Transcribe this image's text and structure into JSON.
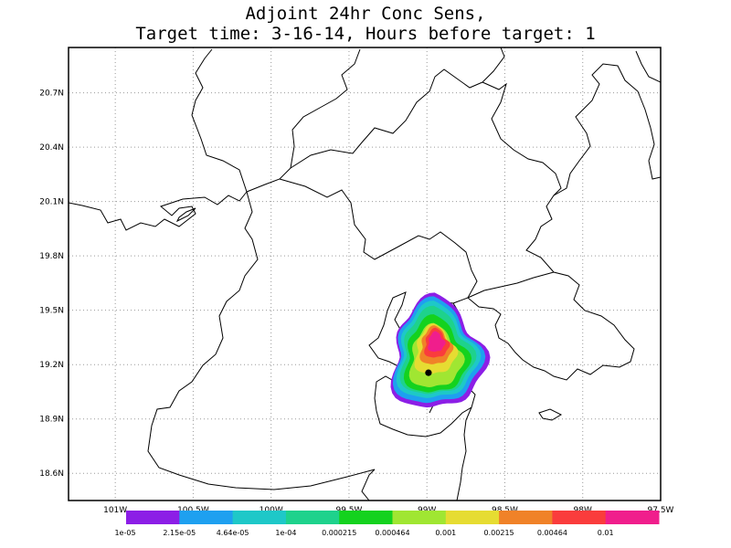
{
  "title": {
    "line1": "Adjoint 24hr Conc Sens,",
    "line2": "Target time: 3-16-14, Hours before target: 1"
  },
  "map": {
    "lon_range": [
      -101.3,
      -97.5
    ],
    "lat_range": [
      18.45,
      20.95
    ],
    "lat_ticks": [
      {
        "value": 18.6,
        "label": "18.6N"
      },
      {
        "value": 18.9,
        "label": "18.9N"
      },
      {
        "value": 19.2,
        "label": "19.2N"
      },
      {
        "value": 19.5,
        "label": "19.5N"
      },
      {
        "value": 19.8,
        "label": "19.8N"
      },
      {
        "value": 20.1,
        "label": "20.1N"
      },
      {
        "value": 20.4,
        "label": "20.4N"
      },
      {
        "value": 20.7,
        "label": "20.7N"
      }
    ],
    "lon_ticks": [
      {
        "value": -101.0,
        "label": "101W"
      },
      {
        "value": -100.5,
        "label": "100.5W"
      },
      {
        "value": -100.0,
        "label": "100W"
      },
      {
        "value": -99.5,
        "label": "99.5W"
      },
      {
        "value": -99.0,
        "label": "99W"
      },
      {
        "value": -98.5,
        "label": "98.5W"
      },
      {
        "value": -98.0,
        "label": "98W"
      },
      {
        "value": -97.5,
        "label": "97.5W"
      }
    ],
    "grid": "dotted",
    "target_point": {
      "lon": -98.99,
      "lat": 19.155
    },
    "plume_center": {
      "lon": -98.95,
      "lat": 19.24
    }
  },
  "colorbar": {
    "colors": [
      "#8c1ee6",
      "#1ea0f0",
      "#1ec8c8",
      "#1ed28c",
      "#14d21e",
      "#a0e632",
      "#e6dc32",
      "#f08228",
      "#fa3c3c",
      "#f01e8c"
    ],
    "labels": [
      "1e-05",
      "2.15e-05",
      "4.64e-05",
      "1e-04",
      "0.000215",
      "0.000464",
      "0.001",
      "0.00215",
      "0.00464",
      "0.01"
    ]
  },
  "colors": {
    "frame": "#000000",
    "boundary": "#000000",
    "grid": "#9a9a9a"
  }
}
